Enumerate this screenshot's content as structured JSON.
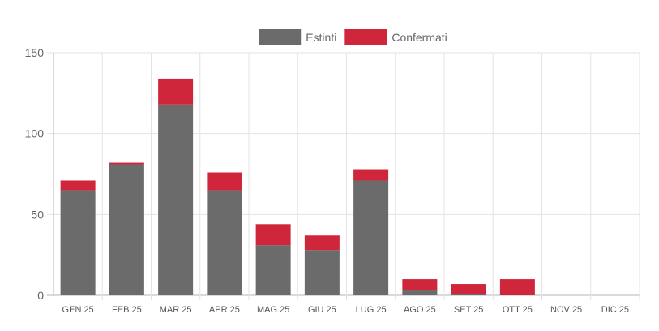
{
  "chart_data": {
    "type": "bar",
    "stacked": true,
    "categories": [
      "GEN 25",
      "FEB 25",
      "MAR 25",
      "APR 25",
      "MAG 25",
      "GIU 25",
      "LUG 25",
      "AGO 25",
      "SET 25",
      "OTT 25",
      "NOV 25",
      "DIC 25"
    ],
    "series": [
      {
        "name": "Estinti",
        "color": "#6b6b6b",
        "values": [
          65,
          81,
          118,
          65,
          31,
          28,
          71,
          3,
          1,
          0,
          0,
          0
        ]
      },
      {
        "name": "Confermati",
        "color": "#d0263c",
        "values": [
          6,
          1,
          16,
          11,
          13,
          9,
          7,
          7,
          6,
          10,
          0,
          0
        ]
      }
    ],
    "ylim": [
      0,
      150
    ],
    "yticks": [
      0,
      50,
      100,
      150
    ],
    "grid": true,
    "legend_position": "top-center"
  }
}
